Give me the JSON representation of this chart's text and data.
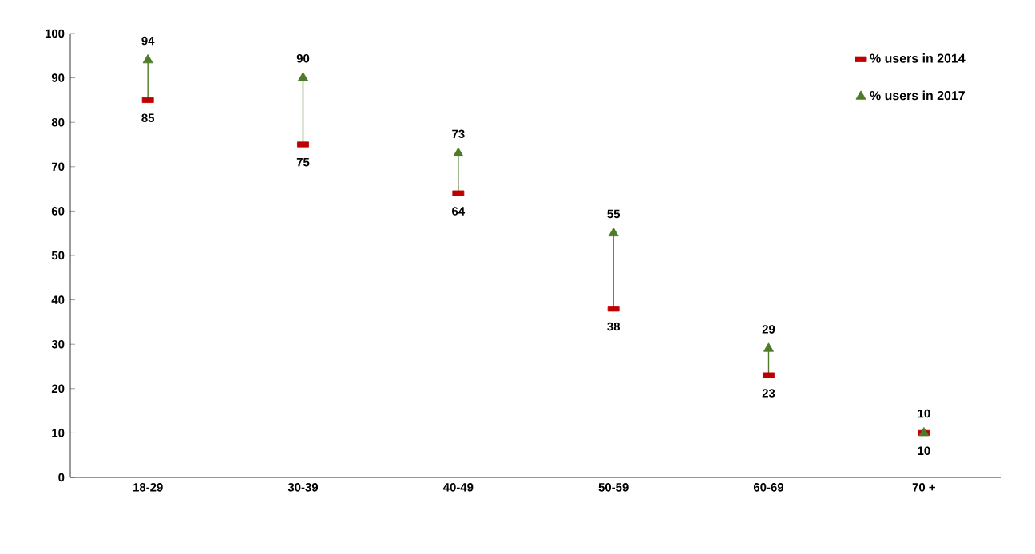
{
  "chart_data": {
    "type": "scatter",
    "categories": [
      "18-29",
      "30-39",
      "40-49",
      "50-59",
      "60-69",
      "70 +"
    ],
    "series": [
      {
        "name": "% users in 2014",
        "color": "#c00000",
        "marker": "square",
        "values": [
          85,
          75,
          64,
          38,
          23,
          10
        ]
      },
      {
        "name": "% users in 2017",
        "color": "#4f7a28",
        "marker": "triangle",
        "values": [
          94,
          90,
          73,
          55,
          29,
          10
        ]
      }
    ],
    "ylim": [
      0,
      100
    ],
    "yticks": [
      0,
      10,
      20,
      30,
      40,
      50,
      60,
      70,
      80,
      90,
      100
    ],
    "grid": false,
    "legend": "top right",
    "data_labels": true
  }
}
